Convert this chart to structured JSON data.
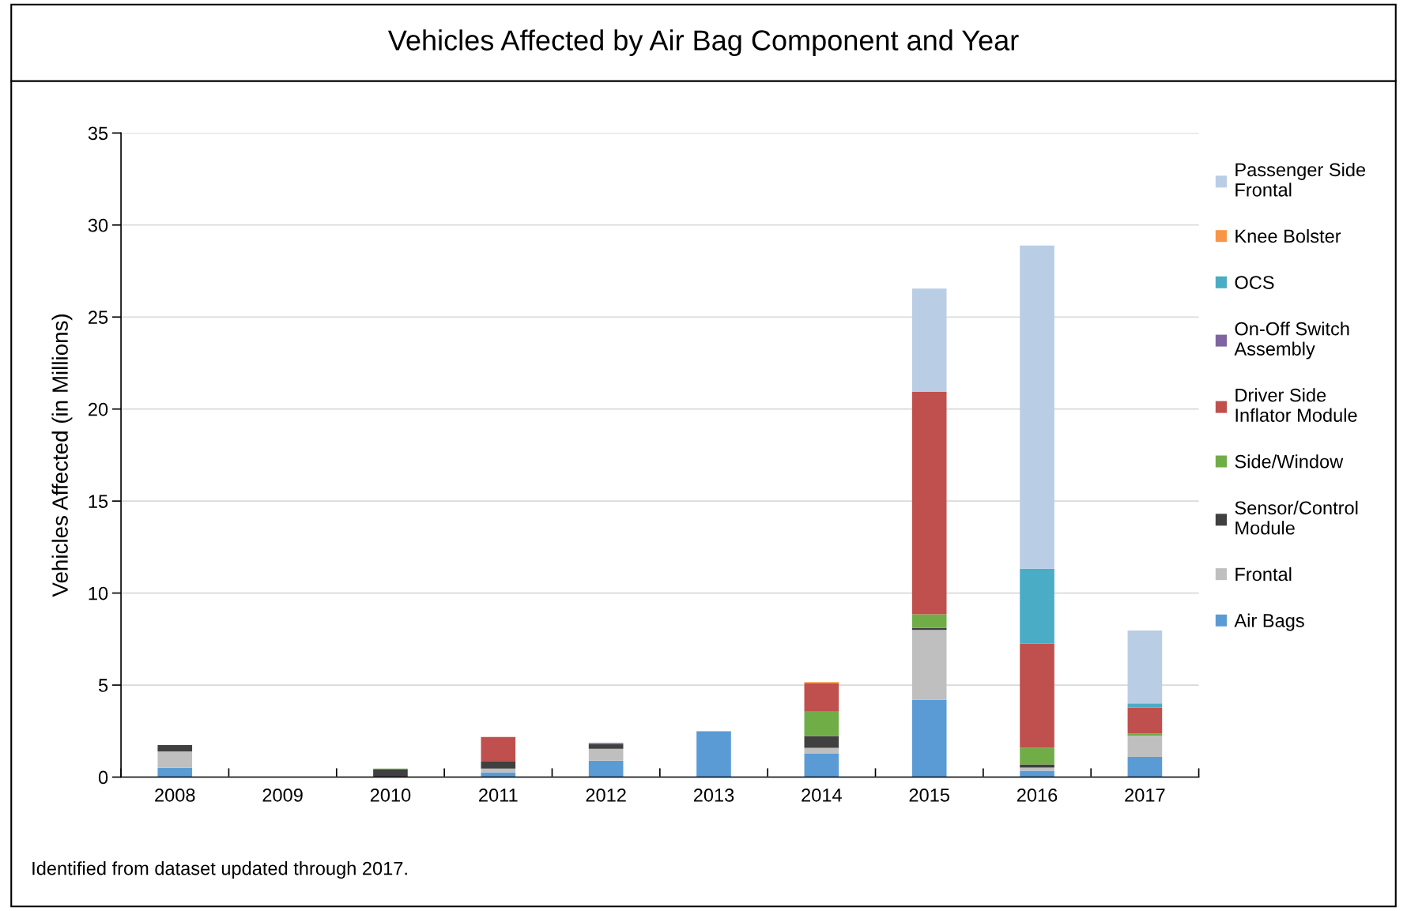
{
  "chart_data": {
    "type": "bar",
    "stacked": true,
    "title": "Vehicles Affected by Air Bag Component and Year",
    "ylabel": "Vehicles Affected (in Millions)",
    "categories": [
      "2008",
      "2009",
      "2010",
      "2011",
      "2012",
      "2013",
      "2014",
      "2015",
      "2016",
      "2017"
    ],
    "series": [
      {
        "name": "Air Bags",
        "color": "#5b9bd5",
        "values": [
          0.51,
          0,
          0,
          0.26,
          0.89,
          2.49,
          1.27,
          4.2,
          0.34,
          1.09
        ]
      },
      {
        "name": "Frontal",
        "color": "#bfbfbf",
        "values": [
          0.89,
          0,
          0,
          0.2,
          0.64,
          0,
          0.32,
          3.8,
          0.18,
          1.15
        ]
      },
      {
        "name": "Sensor/Control\nModule",
        "color": "#404040",
        "values": [
          0.34,
          0,
          0.41,
          0.38,
          0.26,
          0,
          0.64,
          0.1,
          0.17,
          0
        ]
      },
      {
        "name": "Side/Window",
        "color": "#70ad47",
        "values": [
          0,
          0,
          0.05,
          0,
          0,
          0,
          1.32,
          0.75,
          0.9,
          0.12
        ]
      },
      {
        "name": "Driver Side\nInflator Module",
        "color": "#c0504d",
        "values": [
          0,
          0,
          0,
          1.34,
          0,
          0,
          1.54,
          12.08,
          5.67,
          1.41
        ]
      },
      {
        "name": "On-Off Switch\nAssembly",
        "color": "#8064a2",
        "values": [
          0,
          0,
          0,
          0,
          0.07,
          0,
          0,
          0,
          0,
          0
        ]
      },
      {
        "name": "OCS",
        "color": "#4bacc6",
        "values": [
          0,
          0,
          0,
          0,
          0,
          0,
          0,
          0,
          4.07,
          0.23
        ]
      },
      {
        "name": "Knee Bolster",
        "color": "#f79646",
        "values": [
          0,
          0,
          0,
          0,
          0,
          0,
          0.07,
          0,
          0,
          0
        ]
      },
      {
        "name": "Passenger Side\nFrontal",
        "color": "#b9cde5",
        "values": [
          0,
          0,
          0,
          0,
          0,
          0,
          0,
          5.62,
          17.56,
          3.96
        ]
      }
    ],
    "ylim": [
      0,
      35
    ],
    "yticks": [
      0,
      5,
      10,
      15,
      20,
      25,
      30,
      35
    ],
    "grid": "y",
    "legend": "right",
    "annotations": [
      "Identified from dataset updated through 2017."
    ]
  }
}
